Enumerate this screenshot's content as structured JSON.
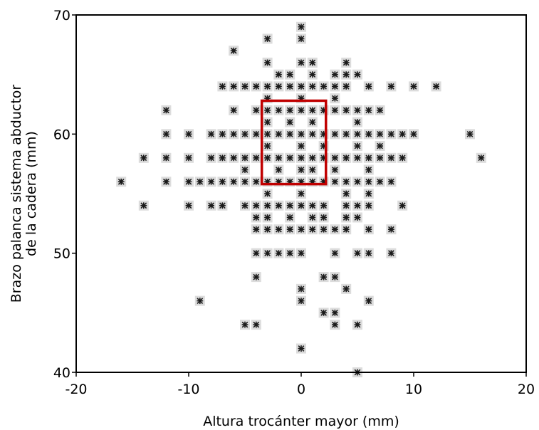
{
  "chart_data": {
    "type": "scatter",
    "title": "",
    "xlabel": "Altura trocánter mayor (mm)",
    "ylabel_lines": [
      "Brazo palanca sistema abductor",
      "de la cadera (mm)"
    ],
    "xlim": [
      -20,
      20
    ],
    "ylim": [
      40,
      70
    ],
    "xticks": [
      -20,
      -10,
      0,
      10,
      20
    ],
    "yticks": [
      40,
      50,
      60,
      70
    ],
    "xtick_labels": [
      "-20",
      "-10",
      "0",
      "10",
      "20"
    ],
    "ytick_labels": [
      "40",
      "50",
      "60",
      "70"
    ],
    "grid": false,
    "marker": "asterisk",
    "colors": {
      "points": "#1a1a1a",
      "halo": "#dcdcdc",
      "highlight_box": "#c00000"
    },
    "highlight_box": {
      "x": [
        -3.5,
        2.2
      ],
      "y": [
        55.8,
        62.8
      ]
    },
    "points": [
      [
        0,
        69
      ],
      [
        0,
        68
      ],
      [
        -3,
        68
      ],
      [
        -6,
        67
      ],
      [
        -3,
        66
      ],
      [
        0,
        66
      ],
      [
        1,
        66
      ],
      [
        4,
        66
      ],
      [
        -2,
        65
      ],
      [
        -1,
        65
      ],
      [
        1,
        65
      ],
      [
        3,
        65
      ],
      [
        4,
        65
      ],
      [
        5,
        65
      ],
      [
        -7,
        64
      ],
      [
        -6,
        64
      ],
      [
        -5,
        64
      ],
      [
        -4,
        64
      ],
      [
        -3,
        64
      ],
      [
        -2,
        64
      ],
      [
        -1,
        64
      ],
      [
        0,
        64
      ],
      [
        1,
        64
      ],
      [
        2,
        64
      ],
      [
        3,
        64
      ],
      [
        4,
        64
      ],
      [
        6,
        64
      ],
      [
        8,
        64
      ],
      [
        10,
        64
      ],
      [
        12,
        64
      ],
      [
        -3,
        63
      ],
      [
        0,
        63
      ],
      [
        3,
        63
      ],
      [
        -12,
        62
      ],
      [
        -6,
        62
      ],
      [
        -4,
        62
      ],
      [
        -3,
        62
      ],
      [
        -2,
        62
      ],
      [
        -1,
        62
      ],
      [
        0,
        62
      ],
      [
        1,
        62
      ],
      [
        2,
        62
      ],
      [
        3,
        62
      ],
      [
        4,
        62
      ],
      [
        5,
        62
      ],
      [
        6,
        62
      ],
      [
        7,
        62
      ],
      [
        -3,
        61
      ],
      [
        -1,
        61
      ],
      [
        1,
        61
      ],
      [
        5,
        61
      ],
      [
        -12,
        60
      ],
      [
        -10,
        60
      ],
      [
        -8,
        60
      ],
      [
        -7,
        60
      ],
      [
        -6,
        60
      ],
      [
        -5,
        60
      ],
      [
        -4,
        60
      ],
      [
        -3,
        60
      ],
      [
        -2,
        60
      ],
      [
        -1,
        60
      ],
      [
        0,
        60
      ],
      [
        1,
        60
      ],
      [
        2,
        60
      ],
      [
        3,
        60
      ],
      [
        4,
        60
      ],
      [
        5,
        60
      ],
      [
        6,
        60
      ],
      [
        7,
        60
      ],
      [
        8,
        60
      ],
      [
        9,
        60
      ],
      [
        10,
        60
      ],
      [
        15,
        60
      ],
      [
        -3,
        59
      ],
      [
        0,
        59
      ],
      [
        2,
        59
      ],
      [
        5,
        59
      ],
      [
        7,
        59
      ],
      [
        -14,
        58
      ],
      [
        -12,
        58
      ],
      [
        -10,
        58
      ],
      [
        -8,
        58
      ],
      [
        -7,
        58
      ],
      [
        -6,
        58
      ],
      [
        -5,
        58
      ],
      [
        -4,
        58
      ],
      [
        -3,
        58
      ],
      [
        -2,
        58
      ],
      [
        -1,
        58
      ],
      [
        0,
        58
      ],
      [
        1,
        58
      ],
      [
        2,
        58
      ],
      [
        3,
        58
      ],
      [
        4,
        58
      ],
      [
        5,
        58
      ],
      [
        6,
        58
      ],
      [
        7,
        58
      ],
      [
        8,
        58
      ],
      [
        9,
        58
      ],
      [
        16,
        58
      ],
      [
        -5,
        57
      ],
      [
        -2,
        57
      ],
      [
        0,
        57
      ],
      [
        1,
        57
      ],
      [
        3,
        57
      ],
      [
        6,
        57
      ],
      [
        -16,
        56
      ],
      [
        -12,
        56
      ],
      [
        -10,
        56
      ],
      [
        -9,
        56
      ],
      [
        -8,
        56
      ],
      [
        -7,
        56
      ],
      [
        -6,
        56
      ],
      [
        -5,
        56
      ],
      [
        -4,
        56
      ],
      [
        -3,
        56
      ],
      [
        -2,
        56
      ],
      [
        -1,
        56
      ],
      [
        0,
        56
      ],
      [
        1,
        56
      ],
      [
        2,
        56
      ],
      [
        3,
        56
      ],
      [
        4,
        56
      ],
      [
        5,
        56
      ],
      [
        6,
        56
      ],
      [
        7,
        56
      ],
      [
        8,
        56
      ],
      [
        -3,
        55
      ],
      [
        0,
        55
      ],
      [
        4,
        55
      ],
      [
        6,
        55
      ],
      [
        -14,
        54
      ],
      [
        -10,
        54
      ],
      [
        -8,
        54
      ],
      [
        -7,
        54
      ],
      [
        -5,
        54
      ],
      [
        -4,
        54
      ],
      [
        -3,
        54
      ],
      [
        -2,
        54
      ],
      [
        -1,
        54
      ],
      [
        0,
        54
      ],
      [
        1,
        54
      ],
      [
        2,
        54
      ],
      [
        4,
        54
      ],
      [
        5,
        54
      ],
      [
        6,
        54
      ],
      [
        9,
        54
      ],
      [
        -4,
        53
      ],
      [
        -3,
        53
      ],
      [
        -1,
        53
      ],
      [
        1,
        53
      ],
      [
        2,
        53
      ],
      [
        4,
        53
      ],
      [
        5,
        53
      ],
      [
        -4,
        52
      ],
      [
        -3,
        52
      ],
      [
        -2,
        52
      ],
      [
        -1,
        52
      ],
      [
        0,
        52
      ],
      [
        1,
        52
      ],
      [
        2,
        52
      ],
      [
        3,
        52
      ],
      [
        4,
        52
      ],
      [
        6,
        52
      ],
      [
        8,
        52
      ],
      [
        -4,
        50
      ],
      [
        -3,
        50
      ],
      [
        -2,
        50
      ],
      [
        -1,
        50
      ],
      [
        0,
        50
      ],
      [
        3,
        50
      ],
      [
        5,
        50
      ],
      [
        6,
        50
      ],
      [
        8,
        50
      ],
      [
        -4,
        48
      ],
      [
        2,
        48
      ],
      [
        3,
        48
      ],
      [
        0,
        47
      ],
      [
        4,
        47
      ],
      [
        -9,
        46
      ],
      [
        0,
        46
      ],
      [
        6,
        46
      ],
      [
        2,
        45
      ],
      [
        3,
        45
      ],
      [
        -5,
        44
      ],
      [
        -4,
        44
      ],
      [
        3,
        44
      ],
      [
        5,
        44
      ],
      [
        0,
        42
      ],
      [
        5,
        40
      ]
    ]
  }
}
